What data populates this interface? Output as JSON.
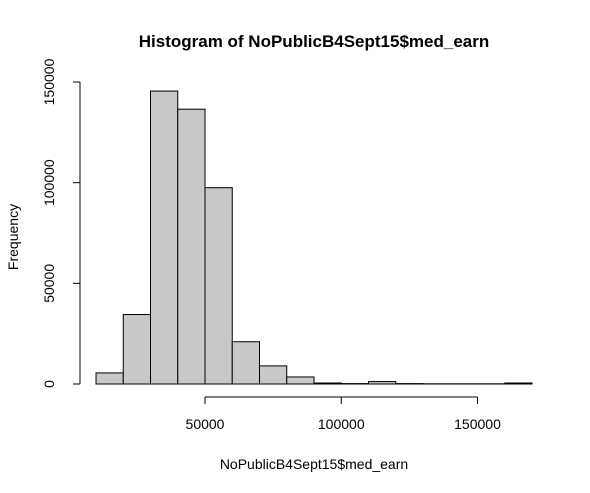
{
  "chart_data": {
    "type": "bar",
    "title": "Histogram of NoPublicB4Sept15$med_earn",
    "xlabel": "NoPublicB4Sept15$med_earn",
    "ylabel": "Frequency",
    "bin_edges": [
      10000,
      20000,
      30000,
      40000,
      50000,
      60000,
      70000,
      80000,
      90000,
      100000,
      110000,
      120000,
      130000,
      140000,
      150000,
      160000,
      170000
    ],
    "values": [
      5500,
      34500,
      145500,
      136500,
      97500,
      21000,
      9000,
      3500,
      500,
      200,
      1200,
      200,
      100,
      100,
      100,
      500
    ],
    "xlim": [
      10000,
      170000
    ],
    "ylim": [
      0,
      150000
    ],
    "x_ticks": [
      50000,
      100000,
      150000
    ],
    "x_tick_labels": [
      "50000",
      "100000",
      "150000"
    ],
    "y_ticks": [
      0,
      50000,
      100000,
      150000
    ],
    "y_tick_labels": [
      "0",
      "50000",
      "100000",
      "150000"
    ],
    "grid": false,
    "bar_fill": "#c8c8c8",
    "bar_stroke": "#000000"
  }
}
